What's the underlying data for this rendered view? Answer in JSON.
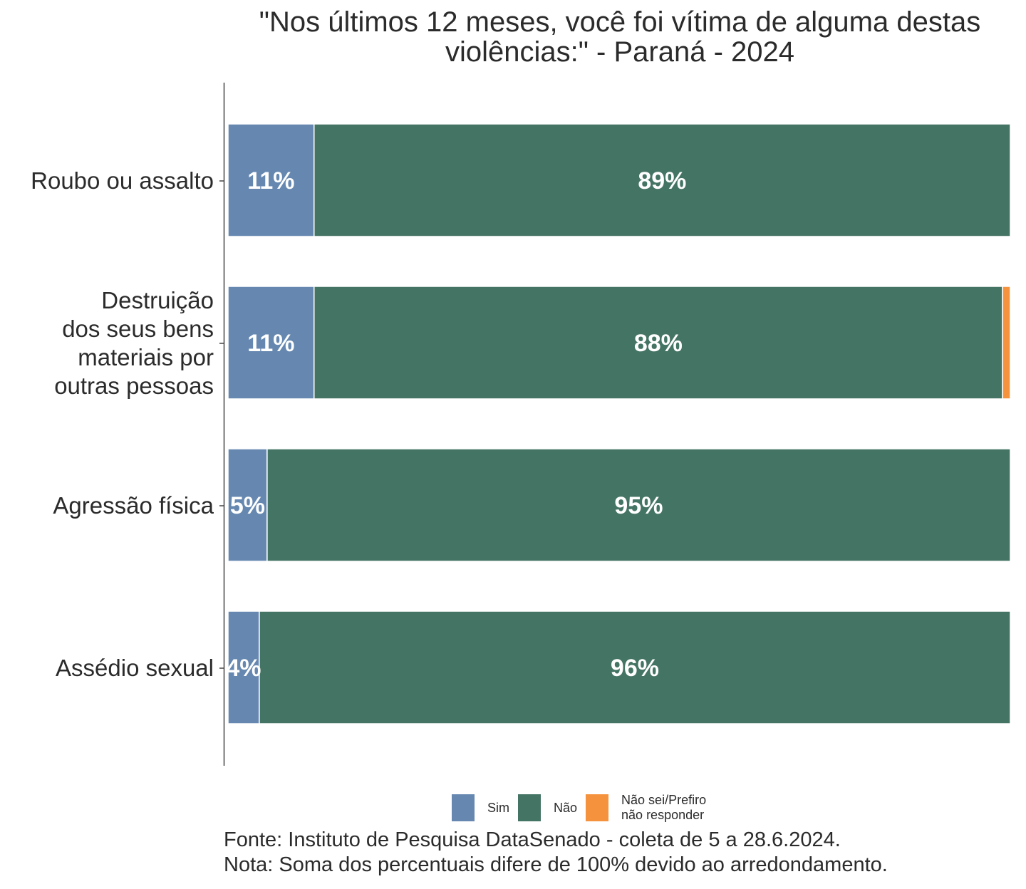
{
  "chart_data": {
    "type": "bar",
    "orientation": "horizontal",
    "stacked": true,
    "title": "\"Nos últimos 12 meses, você foi vítima de alguma destas violências:\" - Paraná - 2024",
    "categories": [
      "Roubo ou assalto",
      "Destruição dos seus bens materiais por outras pessoas",
      "Agressão física",
      "Assédio sexual"
    ],
    "category_label_lines": [
      [
        "Roubo ou assalto"
      ],
      [
        "Destruição",
        "dos seus bens",
        "materiais por",
        "outras pessoas"
      ],
      [
        "Agressão física"
      ],
      [
        "Assédio sexual"
      ]
    ],
    "series": [
      {
        "name": "Sim",
        "color": "#6688b0",
        "values": [
          11,
          11,
          5,
          4
        ],
        "labels": [
          "11%",
          "11%",
          "5%",
          "4%"
        ]
      },
      {
        "name": "Não",
        "color": "#447463",
        "values": [
          89,
          88,
          95,
          96
        ],
        "labels": [
          "89%",
          "88%",
          "95%",
          "96%"
        ]
      },
      {
        "name": "Não sei/Prefiro\nnão responder",
        "color": "#f5923e",
        "values": [
          0,
          1,
          0,
          0
        ],
        "labels": [
          "",
          "",
          "",
          ""
        ]
      }
    ],
    "xlim": [
      0,
      100
    ],
    "grid": false,
    "legend_position": "bottom"
  },
  "footer": {
    "source": "Fonte: Instituto de Pesquisa DataSenado - coleta de 5 a 28.6.2024.",
    "note": "Nota: Soma dos percentuais difere de 100% devido ao arredondamento."
  }
}
